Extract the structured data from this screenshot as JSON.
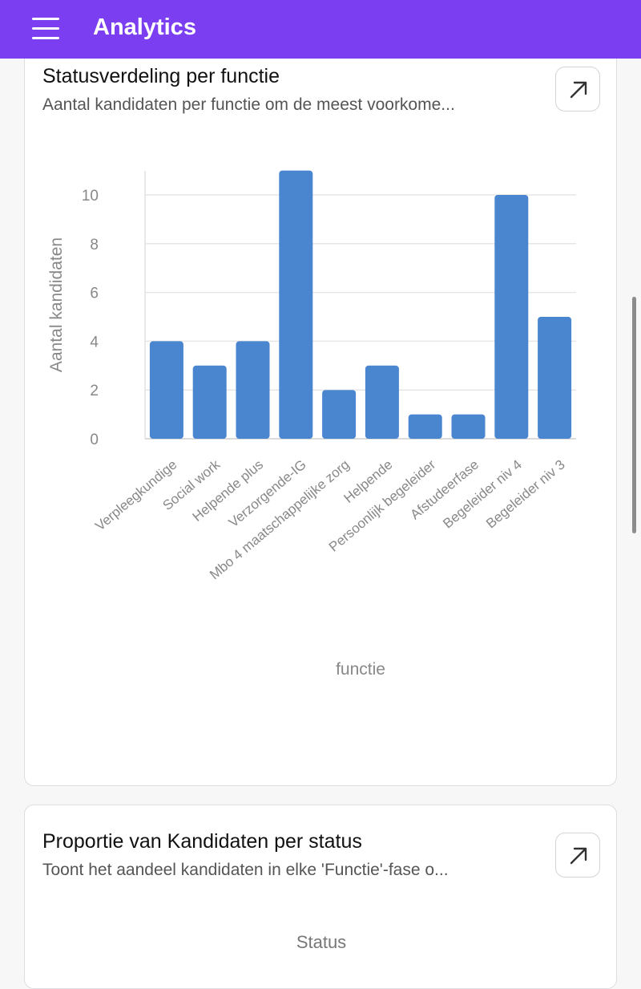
{
  "app_bar": {
    "title": "Analytics",
    "menu_icon": "hamburger-menu-icon"
  },
  "cards": [
    {
      "title": "Statusverdeling per functie",
      "subtitle": "Aantal kandidaten per functie om de meest voorkome...",
      "expand_icon": "arrow-up-right-icon"
    },
    {
      "title": "Proportie van Kandidaten per status",
      "subtitle": "Toont het aandeel kandidaten in elke 'Functie'-fase o...",
      "expand_icon": "arrow-up-right-icon",
      "legend_label": "Status"
    }
  ],
  "chart_data": {
    "type": "bar",
    "categories": [
      "Verpleegkundige",
      "Social work",
      "Helpende plus",
      "Verzorgende-IG",
      "Mbo 4 maatschappelijke zorg",
      "Helpende",
      "Persoonlijk begeleider",
      "Afstudeerfase",
      "Begeleider niv 4",
      "Begeleider niv 3"
    ],
    "values": [
      4,
      3,
      4,
      11,
      2,
      3,
      1,
      1,
      10,
      5
    ],
    "xlabel": "functie",
    "ylabel": "Aantal kandidaten",
    "ylim": [
      0,
      11
    ],
    "yticks": [
      0,
      2,
      4,
      6,
      8,
      10
    ],
    "grid": true,
    "bar_color": "#4a86d0"
  },
  "colors": {
    "accent": "#7b3ef0",
    "bar": "#4a86d0"
  }
}
